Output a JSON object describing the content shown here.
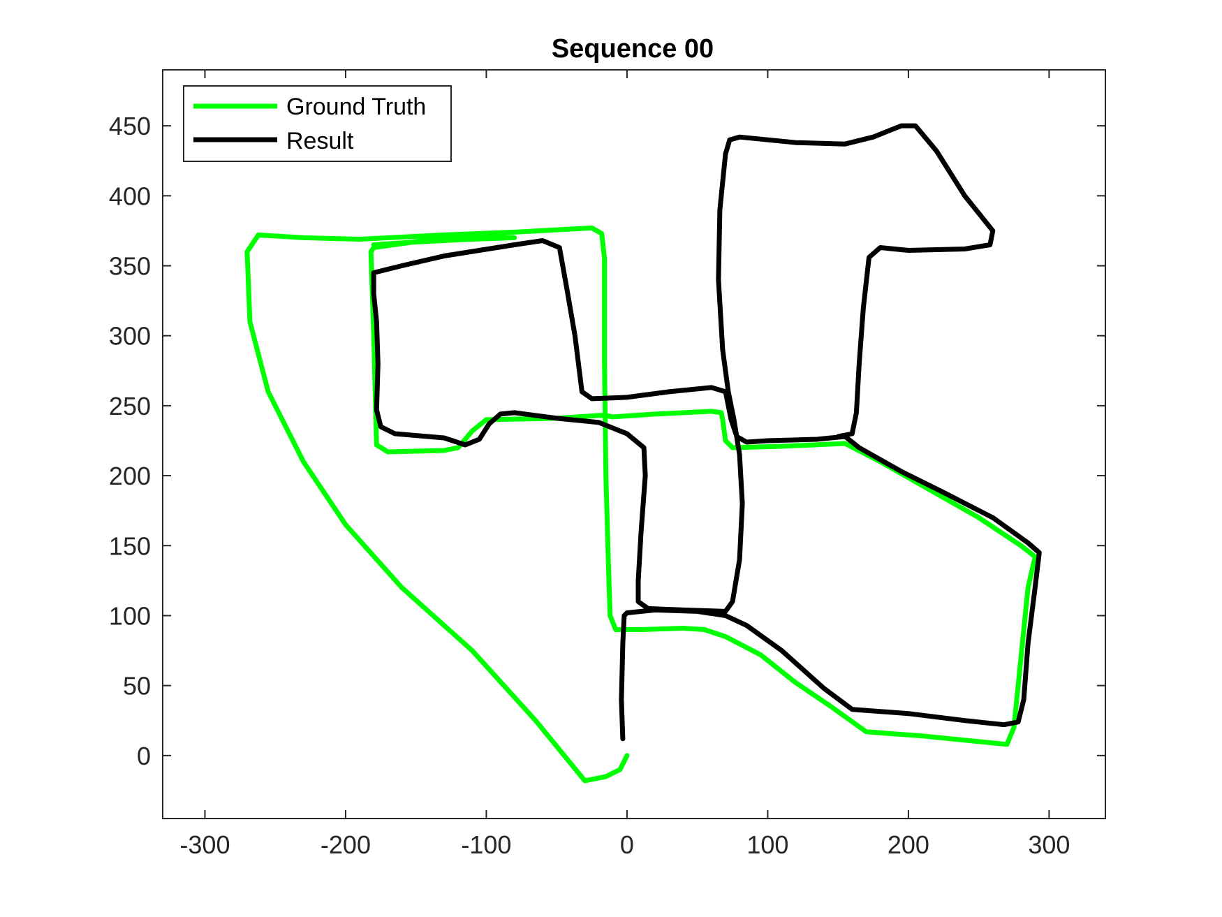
{
  "chart_data": {
    "type": "line",
    "title": "Sequence 00",
    "xlabel": "",
    "ylabel": "",
    "xlim": [
      -330,
      340
    ],
    "ylim": [
      -45,
      490
    ],
    "xticks": [
      -300,
      -200,
      -100,
      0,
      100,
      200,
      300
    ],
    "yticks": [
      0,
      50,
      100,
      150,
      200,
      250,
      300,
      350,
      400,
      450
    ],
    "grid": false,
    "legend_position": "top-left",
    "series": [
      {
        "name": "Ground Truth",
        "color": "#00ff00",
        "points": [
          [
            0,
            0
          ],
          [
            -5,
            -10
          ],
          [
            -15,
            -15
          ],
          [
            -30,
            -18
          ],
          [
            -65,
            25
          ],
          [
            -110,
            75
          ],
          [
            -160,
            120
          ],
          [
            -200,
            165
          ],
          [
            -230,
            210
          ],
          [
            -255,
            260
          ],
          [
            -268,
            310
          ],
          [
            -270,
            360
          ],
          [
            -262,
            372
          ],
          [
            -230,
            370
          ],
          [
            -190,
            369
          ],
          [
            -130,
            372
          ],
          [
            -80,
            374
          ],
          [
            -25,
            377
          ],
          [
            -18,
            373
          ],
          [
            -16,
            355
          ],
          [
            -16,
            280
          ],
          [
            -15,
            200
          ],
          [
            -13,
            130
          ],
          [
            -12,
            100
          ],
          [
            -8,
            90
          ],
          [
            10,
            90
          ],
          [
            40,
            91
          ],
          [
            55,
            90
          ],
          [
            70,
            85
          ],
          [
            95,
            72
          ],
          [
            120,
            52
          ],
          [
            145,
            35
          ],
          [
            170,
            17
          ],
          [
            210,
            14
          ],
          [
            250,
            10
          ],
          [
            270,
            8
          ],
          [
            275,
            20
          ],
          [
            280,
            70
          ],
          [
            285,
            120
          ],
          [
            290,
            142
          ],
          [
            280,
            150
          ],
          [
            250,
            170
          ],
          [
            215,
            190
          ],
          [
            180,
            210
          ],
          [
            155,
            223
          ],
          [
            110,
            221
          ],
          [
            75,
            220
          ],
          [
            70,
            225
          ],
          [
            68,
            240
          ],
          [
            67,
            245
          ],
          [
            60,
            246
          ],
          [
            20,
            244
          ],
          [
            -10,
            242
          ],
          [
            -15,
            243
          ],
          [
            -20,
            243
          ],
          [
            -50,
            241
          ],
          [
            -100,
            240
          ],
          [
            -110,
            232
          ],
          [
            -120,
            220
          ],
          [
            -130,
            218
          ],
          [
            -170,
            217
          ],
          [
            -178,
            222
          ],
          [
            -179,
            260
          ],
          [
            -180,
            300
          ],
          [
            -182,
            360
          ],
          [
            -180,
            363
          ],
          [
            -130,
            370
          ],
          [
            -90,
            371
          ],
          [
            -80,
            370
          ],
          [
            -110,
            369
          ],
          [
            -150,
            367
          ],
          [
            -180,
            365
          ]
        ]
      },
      {
        "name": "Result",
        "color": "#000000",
        "points": [
          [
            -3,
            12
          ],
          [
            -4,
            40
          ],
          [
            -3,
            80
          ],
          [
            -2,
            100
          ],
          [
            0,
            102
          ],
          [
            20,
            104
          ],
          [
            50,
            103
          ],
          [
            70,
            100
          ],
          [
            85,
            93
          ],
          [
            110,
            75
          ],
          [
            140,
            48
          ],
          [
            160,
            33
          ],
          [
            200,
            30
          ],
          [
            240,
            25
          ],
          [
            268,
            22
          ],
          [
            278,
            24
          ],
          [
            282,
            40
          ],
          [
            285,
            80
          ],
          [
            290,
            120
          ],
          [
            293,
            145
          ],
          [
            285,
            152
          ],
          [
            260,
            170
          ],
          [
            225,
            188
          ],
          [
            195,
            203
          ],
          [
            165,
            220
          ],
          [
            155,
            228
          ],
          [
            135,
            226
          ],
          [
            100,
            225
          ],
          [
            85,
            224
          ],
          [
            78,
            228
          ],
          [
            74,
            240
          ],
          [
            72,
            250
          ],
          [
            70,
            260
          ],
          [
            60,
            263
          ],
          [
            30,
            260
          ],
          [
            0,
            256
          ],
          [
            -25,
            255
          ],
          [
            -32,
            260
          ],
          [
            -37,
            300
          ],
          [
            -43,
            335
          ],
          [
            -48,
            363
          ],
          [
            -60,
            368
          ],
          [
            -80,
            365
          ],
          [
            -130,
            357
          ],
          [
            -160,
            350
          ],
          [
            -180,
            345
          ],
          [
            -180,
            330
          ],
          [
            -178,
            310
          ],
          [
            -177,
            280
          ],
          [
            -178,
            247
          ],
          [
            -175,
            235
          ],
          [
            -165,
            230
          ],
          [
            -130,
            227
          ],
          [
            -115,
            222
          ],
          [
            -105,
            226
          ],
          [
            -98,
            237
          ],
          [
            -90,
            244
          ],
          [
            -80,
            245
          ],
          [
            -50,
            241
          ],
          [
            -20,
            238
          ],
          [
            0,
            230
          ],
          [
            12,
            220
          ],
          [
            13,
            200
          ],
          [
            10,
            160
          ],
          [
            8,
            125
          ],
          [
            8,
            110
          ],
          [
            15,
            105
          ],
          [
            40,
            104
          ],
          [
            70,
            103
          ],
          [
            75,
            110
          ],
          [
            80,
            140
          ],
          [
            82,
            180
          ],
          [
            80,
            215
          ],
          [
            76,
            240
          ],
          [
            72,
            260
          ],
          [
            68,
            290
          ],
          [
            65,
            340
          ],
          [
            66,
            390
          ],
          [
            70,
            430
          ],
          [
            73,
            440
          ],
          [
            80,
            442
          ],
          [
            120,
            438
          ],
          [
            155,
            437
          ],
          [
            175,
            442
          ],
          [
            195,
            450
          ],
          [
            205,
            450
          ],
          [
            220,
            432
          ],
          [
            240,
            400
          ],
          [
            260,
            375
          ],
          [
            258,
            365
          ],
          [
            240,
            362
          ],
          [
            200,
            361
          ],
          [
            180,
            363
          ],
          [
            172,
            356
          ],
          [
            168,
            320
          ],
          [
            165,
            280
          ],
          [
            163,
            245
          ],
          [
            160,
            230
          ],
          [
            150,
            228
          ]
        ]
      }
    ]
  }
}
